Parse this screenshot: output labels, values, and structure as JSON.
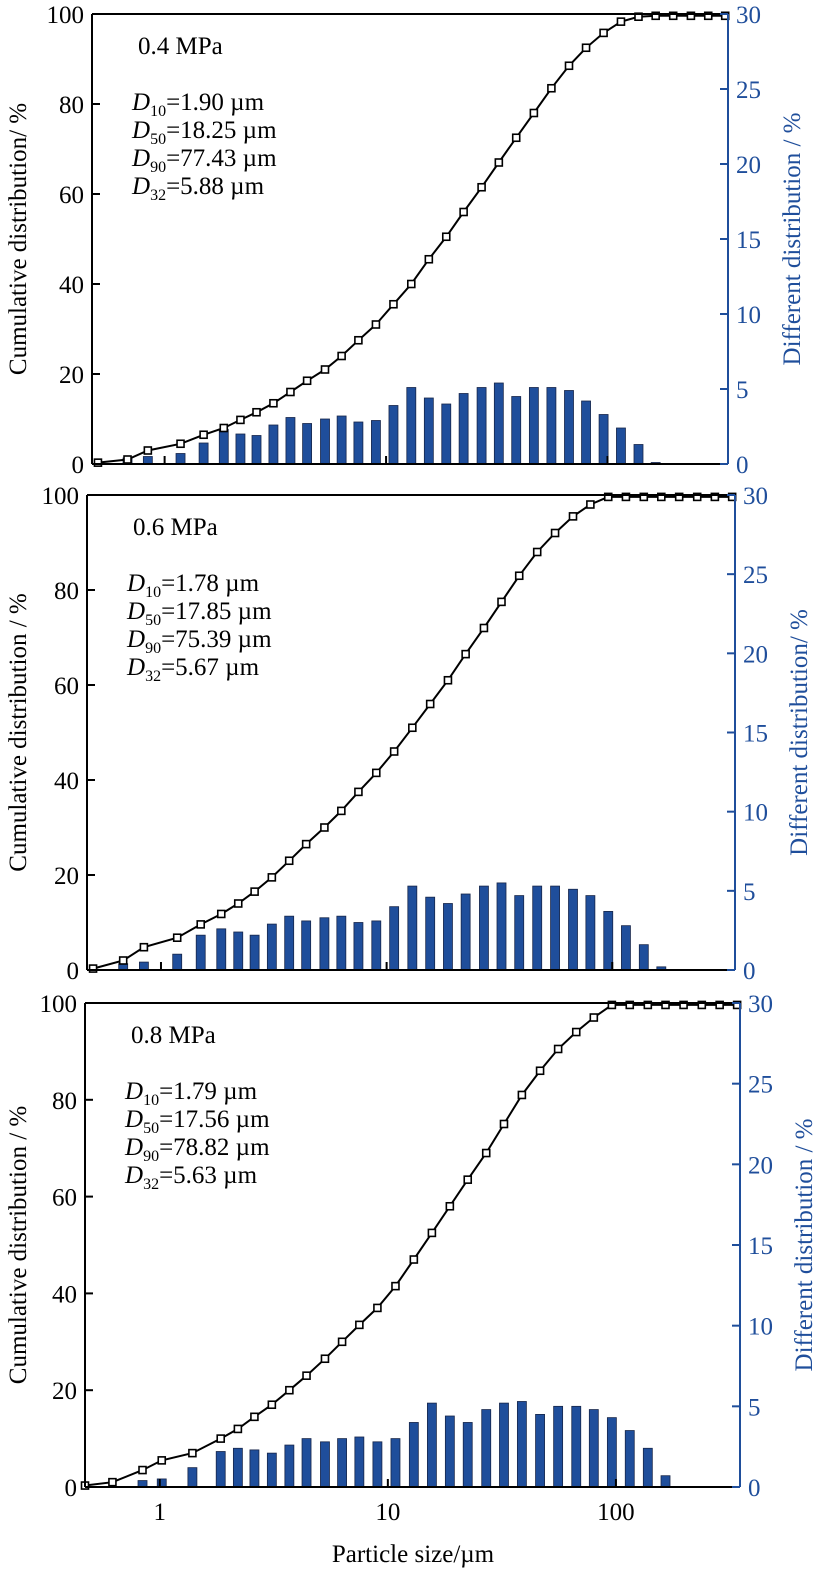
{
  "chart_data": {
    "type": "bar+line",
    "xlabel": "Particle size/µm",
    "xscale": "log",
    "xlim": [
      0.47,
      350
    ],
    "xticks": [
      1,
      10,
      100
    ],
    "xtick_labels": [
      "1",
      "10",
      "100"
    ],
    "left_axis": {
      "ylim": [
        0,
        100
      ],
      "yticks": [
        0,
        20,
        40,
        60,
        80,
        100
      ],
      "color": "#000000"
    },
    "right_axis": {
      "ylim": [
        0,
        30
      ],
      "yticks": [
        0,
        5,
        10,
        15,
        20,
        25,
        30
      ],
      "color": "#1f4e9b"
    },
    "bar_color": "#1f4e9b",
    "line_color": "#000000",
    "marker": "open-square",
    "panels": [
      {
        "id": "p04",
        "pressure_label": "0.4 MPa",
        "ylabel_left": "Cumulative distribution/ %",
        "ylabel_right": "Different distribution / %",
        "stats": [
          {
            "sym": "D",
            "sub": "10",
            "value": "=1.90 µm"
          },
          {
            "sym": "D",
            "sub": "50",
            "value": "=18.25 µm"
          },
          {
            "sym": "D",
            "sub": "90",
            "value": "=77.43 µm"
          },
          {
            "sym": "D",
            "sub": "32",
            "value": "=5.88 µm"
          }
        ],
        "cumulative": {
          "x": [
            0.5,
            0.68,
            0.84,
            1.18,
            1.5,
            1.85,
            2.2,
            2.6,
            3.1,
            3.7,
            4.4,
            5.3,
            6.3,
            7.5,
            9.0,
            10.8,
            13.0,
            15.6,
            18.7,
            22.4,
            27,
            32.3,
            38.7,
            46.5,
            55.8,
            67,
            80,
            96,
            115,
            138,
            165,
            198,
            238,
            285,
            340
          ],
          "values": [
            0.3,
            1.0,
            3.0,
            4.5,
            6.5,
            8.0,
            9.8,
            11.5,
            13.5,
            16.0,
            18.5,
            21.0,
            24.0,
            27.5,
            31.0,
            35.5,
            40.0,
            45.5,
            50.5,
            56.0,
            61.5,
            67.0,
            72.5,
            78.0,
            83.5,
            88.5,
            92.5,
            95.8,
            98.3,
            99.4,
            99.6,
            99.6,
            99.6,
            99.6,
            99.6
          ]
        },
        "differential": {
          "x": [
            0.68,
            0.84,
            1.18,
            1.5,
            1.85,
            2.2,
            2.6,
            3.1,
            3.7,
            4.4,
            5.3,
            6.3,
            7.5,
            9.0,
            10.8,
            13.0,
            15.6,
            18.7,
            22.4,
            27,
            32.3,
            38.7,
            46.5,
            55.8,
            67,
            80,
            96,
            115,
            138,
            165
          ],
          "values": [
            0.4,
            0.5,
            0.7,
            1.4,
            2.3,
            2.0,
            1.9,
            2.6,
            3.1,
            2.7,
            3.0,
            3.2,
            2.8,
            2.9,
            3.9,
            5.1,
            4.4,
            4.0,
            4.7,
            5.1,
            5.4,
            4.5,
            5.1,
            5.1,
            4.9,
            4.2,
            3.3,
            2.4,
            1.3,
            0.1
          ]
        }
      },
      {
        "id": "p06",
        "pressure_label": "0.6 MPa",
        "ylabel_left": "Cumulative distribution / %",
        "ylabel_right": "Different distribution/ %",
        "stats": [
          {
            "sym": "D",
            "sub": "10",
            "value": "=1.78 µm"
          },
          {
            "sym": "D",
            "sub": "50",
            "value": "=17.85 µm"
          },
          {
            "sym": "D",
            "sub": "90",
            "value": "=75.39 µm"
          },
          {
            "sym": "D",
            "sub": "32",
            "value": "=5.67 µm"
          }
        ],
        "cumulative": {
          "x": [
            0.5,
            0.68,
            0.84,
            1.18,
            1.5,
            1.85,
            2.2,
            2.6,
            3.1,
            3.7,
            4.4,
            5.3,
            6.3,
            7.5,
            9.0,
            10.8,
            13.0,
            15.6,
            18.7,
            22.4,
            27,
            32.3,
            38.7,
            46.5,
            55.8,
            67,
            80,
            96,
            115,
            138,
            165,
            198,
            238,
            285,
            340
          ],
          "values": [
            0.3,
            2.0,
            4.8,
            6.8,
            9.6,
            11.8,
            14.0,
            16.5,
            19.5,
            23.0,
            26.5,
            30.0,
            33.5,
            37.5,
            41.5,
            46.0,
            51.0,
            56.0,
            61.0,
            66.5,
            72.0,
            77.5,
            83.0,
            88.0,
            92.0,
            95.5,
            98.0,
            99.6,
            99.6,
            99.6,
            99.6,
            99.6,
            99.6,
            99.6,
            99.6
          ]
        },
        "differential": {
          "x": [
            0.68,
            0.84,
            1.18,
            1.5,
            1.85,
            2.2,
            2.6,
            3.1,
            3.7,
            4.4,
            5.3,
            6.3,
            7.5,
            9.0,
            10.8,
            13.0,
            15.6,
            18.7,
            22.4,
            27,
            32.3,
            38.7,
            46.5,
            55.8,
            67,
            80,
            96,
            115,
            138,
            165
          ],
          "values": [
            0.4,
            0.5,
            1.0,
            2.2,
            2.6,
            2.4,
            2.2,
            2.9,
            3.4,
            3.1,
            3.3,
            3.4,
            3.0,
            3.1,
            4.0,
            5.3,
            4.6,
            4.2,
            4.8,
            5.3,
            5.5,
            4.7,
            5.3,
            5.3,
            5.1,
            4.7,
            3.7,
            2.8,
            1.6,
            0.2
          ]
        }
      },
      {
        "id": "p08",
        "pressure_label": "0.8 MPa",
        "ylabel_left": "Cumulative distribution / %",
        "ylabel_right": "Different distribution / %",
        "stats": [
          {
            "sym": "D",
            "sub": "10",
            "value": "=1.79 µm"
          },
          {
            "sym": "D",
            "sub": "50",
            "value": "=17.56 µm"
          },
          {
            "sym": "D",
            "sub": "90",
            "value": "=78.82 µm"
          },
          {
            "sym": "D",
            "sub": "32",
            "value": "=5.63 µm"
          }
        ],
        "cumulative": {
          "x": [
            0.47,
            0.62,
            0.84,
            1.02,
            1.39,
            1.85,
            2.2,
            2.6,
            3.1,
            3.7,
            4.4,
            5.3,
            6.3,
            7.5,
            9.0,
            10.8,
            13.0,
            15.6,
            18.7,
            22.4,
            27,
            32.3,
            38.7,
            46.5,
            55.8,
            67,
            80,
            96,
            115,
            138,
            165,
            198,
            238,
            285,
            340
          ],
          "values": [
            0.3,
            1.0,
            3.5,
            5.5,
            7.0,
            10.0,
            12.0,
            14.5,
            17.0,
            20.0,
            23.0,
            26.5,
            30.0,
            33.5,
            37.0,
            41.5,
            47.0,
            52.5,
            58.0,
            63.5,
            69.0,
            75.0,
            81.0,
            86.0,
            90.5,
            94.0,
            97.0,
            99.6,
            99.6,
            99.6,
            99.6,
            99.6,
            99.6,
            99.6,
            99.6
          ]
        },
        "differential": {
          "x": [
            0.84,
            1.02,
            1.39,
            1.85,
            2.2,
            2.6,
            3.1,
            3.7,
            4.4,
            5.3,
            6.3,
            7.5,
            9.0,
            10.8,
            13.0,
            15.6,
            18.7,
            22.4,
            27,
            32.3,
            38.7,
            46.5,
            55.8,
            67,
            80,
            96,
            115,
            138,
            165
          ],
          "values": [
            0.4,
            0.5,
            1.2,
            2.2,
            2.4,
            2.3,
            2.1,
            2.6,
            3.0,
            2.8,
            3.0,
            3.1,
            2.8,
            3.0,
            4.0,
            5.2,
            4.4,
            4.0,
            4.8,
            5.2,
            5.3,
            4.5,
            5.0,
            5.0,
            4.8,
            4.3,
            3.5,
            2.4,
            0.7
          ]
        }
      }
    ]
  }
}
